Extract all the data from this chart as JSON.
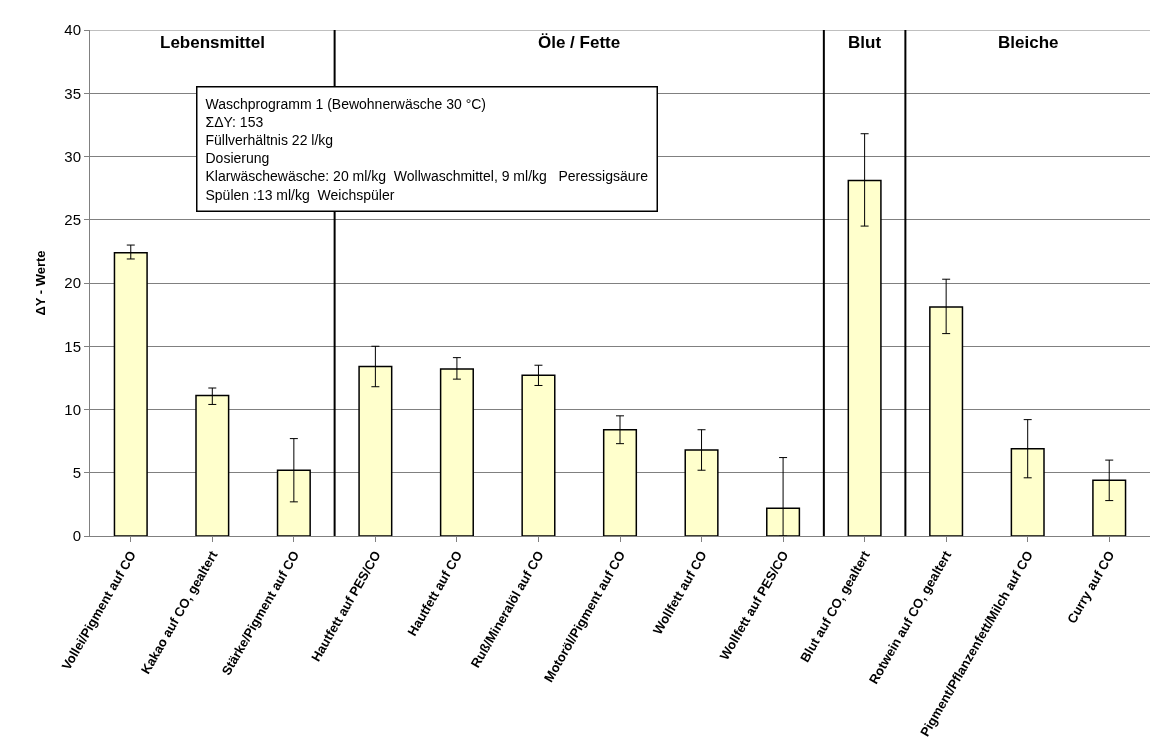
{
  "chart_data": {
    "type": "bar",
    "ylabel": "ΔY - Werte",
    "categories": [
      "Vollei/Pigment auf CO",
      "Kakao auf CO, gealtert",
      "Stärke/Pigment auf CO",
      "Hautfett auf PES/CO",
      "Hautfett auf CO",
      "Ruß/Mineralöl auf CO",
      "Motoröl/Pigment auf CO",
      "Wollfett auf CO",
      "Wollfett auf PES/CO",
      "Blut auf CO, gealtert",
      "Rotwein auf CO, gealtert",
      "Pigment/Pflanzenfett/Milch auf CO",
      "Curry auf CO"
    ],
    "values": [
      22.4,
      11.1,
      5.2,
      13.4,
      13.2,
      12.7,
      8.4,
      6.8,
      2.2,
      28.1,
      18.1,
      6.9,
      4.4
    ],
    "errors": [
      [
        21.9,
        23.0
      ],
      [
        10.4,
        11.7
      ],
      [
        2.7,
        7.7
      ],
      [
        11.8,
        15.0
      ],
      [
        12.4,
        14.1
      ],
      [
        11.9,
        13.5
      ],
      [
        7.3,
        9.5
      ],
      [
        5.2,
        8.4
      ],
      [
        0,
        6.2
      ],
      [
        24.5,
        31.8
      ],
      [
        16.0,
        20.3
      ],
      [
        4.6,
        9.2
      ],
      [
        2.8,
        6.0
      ]
    ],
    "color": "#ffffcc",
    "ylim": [
      0,
      40
    ],
    "yticks": [
      0,
      5,
      10,
      15,
      20,
      25,
      30,
      35,
      40
    ],
    "grid": "y",
    "annotations": [
      "Lebensmittel",
      "Öle / Fette",
      "Blut",
      "Bleiche",
      "Waschprogramm 1 (Bewohnerwäsche 30 °C)\nΣΔY: 153\nFüllverhältnis 22 l/kg\nDosierung\nKlarwäschewäsche: 20 ml/kg  Wollwaschmittel, 9 ml/kg   Peressigsäure\nSpülen :13 ml/kg  Weichspüler"
    ]
  }
}
